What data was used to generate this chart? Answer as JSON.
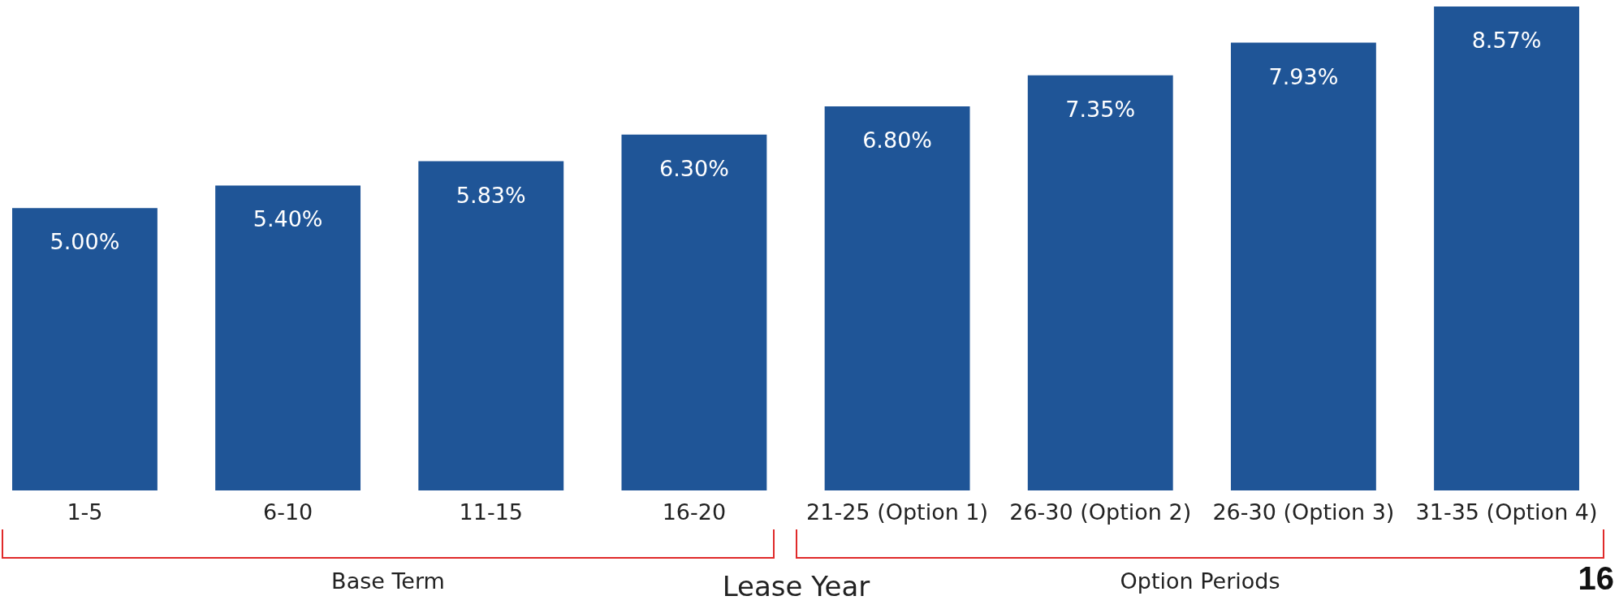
{
  "chart_data": {
    "type": "bar",
    "xlabel": "Lease Year",
    "categories": [
      "1-5",
      "6-10",
      "11-15",
      "16-20",
      "21-25 (Option 1)",
      "26-30 (Option 2)",
      "26-30 (Option 3)",
      "31-35 (Option 4)"
    ],
    "values": [
      5.0,
      5.4,
      5.83,
      6.3,
      6.8,
      7.35,
      7.93,
      8.57
    ],
    "value_labels": [
      "5.00%",
      "5.40%",
      "5.83%",
      "6.30%",
      "6.80%",
      "7.35%",
      "7.93%",
      "8.57%"
    ],
    "color": "#1f5597",
    "annotations": [
      "Base Term",
      "Option Periods",
      "16"
    ]
  }
}
